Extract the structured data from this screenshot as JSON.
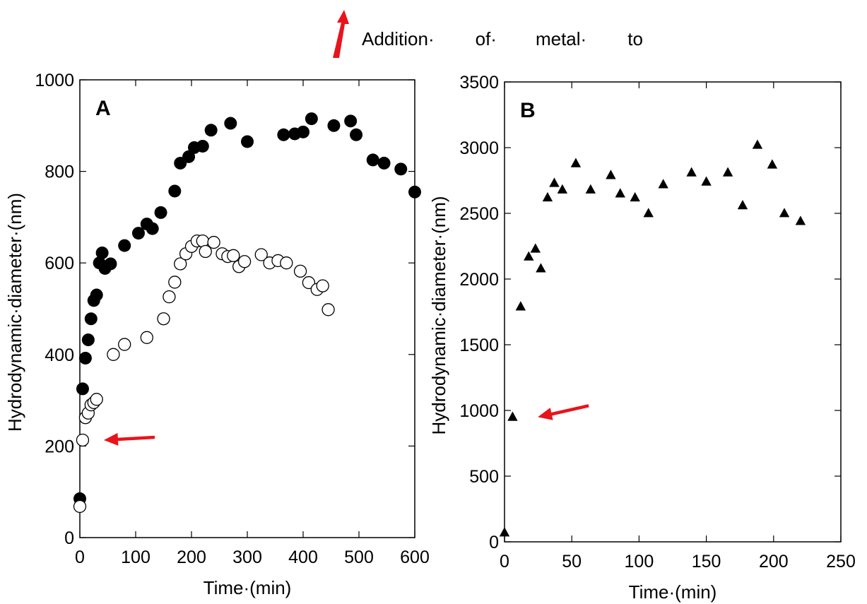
{
  "header_note": {
    "words": [
      "Addition·",
      "of·",
      "metal·",
      "to"
    ],
    "arrow_color": "#e8141b"
  },
  "chart_data": [
    {
      "type": "scatter",
      "panel_label": "A",
      "xlabel": "Time·(min)",
      "ylabel": "Hydrodynamic·diameter·(nm)",
      "xlim": [
        0,
        600
      ],
      "ylim": [
        0,
        1000
      ],
      "xticks": [
        0,
        100,
        200,
        300,
        400,
        500,
        600
      ],
      "yticks": [
        0,
        200,
        400,
        600,
        800,
        1000
      ],
      "grid": false,
      "series": [
        {
          "marker": "filled-circle",
          "color": "#000000",
          "points": [
            [
              0,
              85
            ],
            [
              5,
              325
            ],
            [
              10,
              392
            ],
            [
              15,
              432
            ],
            [
              20,
              478
            ],
            [
              25,
              518
            ],
            [
              30,
              530
            ],
            [
              35,
              600
            ],
            [
              40,
              622
            ],
            [
              45,
              588
            ],
            [
              55,
              598
            ],
            [
              80,
              638
            ],
            [
              105,
              665
            ],
            [
              120,
              685
            ],
            [
              130,
              675
            ],
            [
              145,
              710
            ],
            [
              170,
              757
            ],
            [
              180,
              818
            ],
            [
              195,
              832
            ],
            [
              205,
              852
            ],
            [
              220,
              855
            ],
            [
              235,
              890
            ],
            [
              270,
              905
            ],
            [
              300,
              865
            ],
            [
              365,
              880
            ],
            [
              385,
              882
            ],
            [
              400,
              886
            ],
            [
              415,
              915
            ],
            [
              455,
              900
            ],
            [
              485,
              910
            ],
            [
              495,
              880
            ],
            [
              525,
              825
            ],
            [
              545,
              818
            ],
            [
              575,
              805
            ],
            [
              600,
              755
            ]
          ]
        },
        {
          "marker": "open-circle",
          "color": "#000000",
          "points": [
            [
              0,
              68
            ],
            [
              5,
              213
            ],
            [
              10,
              262
            ],
            [
              15,
              272
            ],
            [
              20,
              290
            ],
            [
              25,
              295
            ],
            [
              30,
              302
            ],
            [
              60,
              400
            ],
            [
              80,
              422
            ],
            [
              120,
              437
            ],
            [
              150,
              478
            ],
            [
              160,
              526
            ],
            [
              170,
              558
            ],
            [
              180,
              598
            ],
            [
              190,
              620
            ],
            [
              200,
              636
            ],
            [
              210,
              648
            ],
            [
              220,
              648
            ],
            [
              225,
              625
            ],
            [
              240,
              645
            ],
            [
              255,
              620
            ],
            [
              265,
              614
            ],
            [
              275,
              616
            ],
            [
              285,
              592
            ],
            [
              295,
              603
            ],
            [
              325,
              618
            ],
            [
              340,
              600
            ],
            [
              355,
              605
            ],
            [
              370,
              600
            ],
            [
              395,
              582
            ],
            [
              410,
              557
            ],
            [
              425,
              542
            ],
            [
              435,
              550
            ],
            [
              445,
              498
            ]
          ]
        }
      ],
      "annotation_arrow": {
        "at": [
          5,
          213
        ],
        "color": "#e8141b"
      }
    },
    {
      "type": "scatter",
      "panel_label": "B",
      "xlabel": "Time·(min)",
      "ylabel": "Hydrodynamic·diameter·(nm)",
      "xlim": [
        0,
        250
      ],
      "ylim": [
        0,
        3500
      ],
      "xticks": [
        0,
        50,
        100,
        150,
        200,
        250
      ],
      "yticks": [
        0,
        500,
        1000,
        1500,
        2000,
        2500,
        3000,
        3500
      ],
      "grid": false,
      "series": [
        {
          "marker": "filled-triangle",
          "color": "#000000",
          "points": [
            [
              0,
              70
            ],
            [
              6,
              950
            ],
            [
              12,
              1790
            ],
            [
              18,
              2170
            ],
            [
              23,
              2230
            ],
            [
              27,
              2080
            ],
            [
              32,
              2620
            ],
            [
              37,
              2730
            ],
            [
              43,
              2680
            ],
            [
              53,
              2880
            ],
            [
              64,
              2680
            ],
            [
              79,
              2790
            ],
            [
              86,
              2650
            ],
            [
              97,
              2620
            ],
            [
              107,
              2500
            ],
            [
              118,
              2720
            ],
            [
              139,
              2810
            ],
            [
              150,
              2740
            ],
            [
              166,
              2810
            ],
            [
              177,
              2560
            ],
            [
              188,
              3020
            ],
            [
              199,
              2870
            ],
            [
              208,
              2500
            ],
            [
              220,
              2440
            ]
          ]
        }
      ],
      "annotation_arrow": {
        "at": [
          9,
          950
        ],
        "color": "#e8141b"
      }
    }
  ]
}
